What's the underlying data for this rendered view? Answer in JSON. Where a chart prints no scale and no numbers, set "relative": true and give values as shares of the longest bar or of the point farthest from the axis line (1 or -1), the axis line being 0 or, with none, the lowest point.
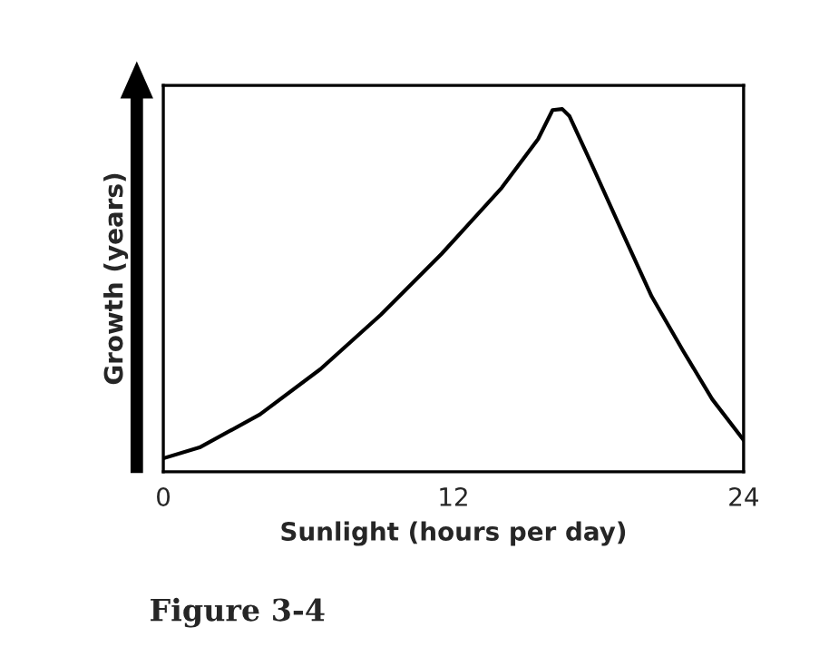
{
  "chart_data": {
    "type": "line",
    "relative": true,
    "xlabel": "Sunlight (hours per day)",
    "ylabel": "Growth (years)",
    "x": [
      0,
      1.5,
      4.0,
      6.5,
      9.0,
      11.5,
      14.0,
      15.5,
      16.1,
      16.5,
      16.8,
      17.7,
      19.0,
      20.2,
      21.5,
      22.7,
      24
    ],
    "series": [
      {
        "color": "#000000",
        "values": [
          0.037,
          0.067,
          0.158,
          0.283,
          0.433,
          0.6,
          0.783,
          0.917,
          0.997,
          1.0,
          0.98,
          0.85,
          0.658,
          0.483,
          0.333,
          0.2,
          0.087
        ]
      }
    ],
    "xlim": [
      0,
      24
    ],
    "xticks": [
      0,
      12,
      24
    ],
    "grid": false,
    "legend": false,
    "annotations": [
      "Figure 3-4"
    ]
  }
}
